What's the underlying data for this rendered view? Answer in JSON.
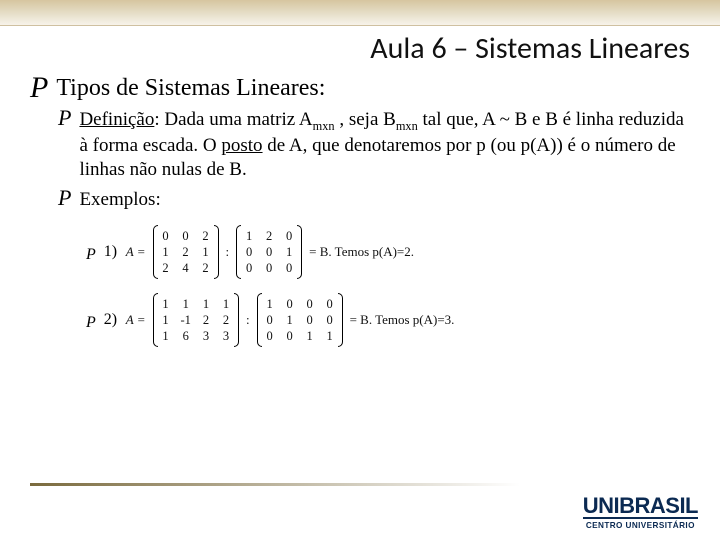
{
  "slide": {
    "title": "Aula 6 – Sistemas Lineares",
    "heading": "Tipos de Sistemas Lineares:",
    "definition": {
      "label": "Definição",
      "body_html": ": Dada uma matriz A<span class=\"sub\">mxn</span> ,  seja   B<span class=\"sub\">mxn</span>  tal que, A ~ B e B é linha reduzida à forma escada. O <span class=\"posto-u\">posto</span> de A, que denotaremos por p (ou p(A)) é o número de linhas não nulas de B."
    },
    "examples_label": "Exemplos:",
    "examples": [
      {
        "num": "1)",
        "lhs_name": "A =",
        "A": {
          "rows": 3,
          "cols": 3,
          "cells": [
            "0",
            "0",
            "2",
            "1",
            "2",
            "1",
            "2",
            "4",
            "2"
          ]
        },
        "sep": ":",
        "B": {
          "rows": 3,
          "cols": 3,
          "cells": [
            "1",
            "2",
            "0",
            "0",
            "0",
            "1",
            "0",
            "0",
            "0"
          ]
        },
        "tail": "= B. Temos p(A)=2."
      },
      {
        "num": "2)",
        "lhs_name": "A =",
        "A": {
          "rows": 3,
          "cols": 4,
          "cells": [
            "1",
            "1",
            "1",
            "1",
            "1",
            "-1",
            "2",
            "2",
            "1",
            "6",
            "3",
            "3"
          ]
        },
        "sep": ":",
        "B": {
          "rows": 3,
          "cols": 4,
          "cells": [
            "1",
            "0",
            "0",
            "0",
            "0",
            "1",
            "0",
            "0",
            "0",
            "0",
            "1",
            "1"
          ]
        },
        "tail": "= B. Temos p(A)=3."
      }
    ]
  },
  "style": {
    "background": "#ffffff",
    "band_gradient": [
      "#d6c5a0",
      "#e6dfc9",
      "#f7f3ea"
    ],
    "text_color": "#000000",
    "accent_line": "#7a6a3d",
    "logo_color": "#0b2a52",
    "title_fontsize": 30,
    "lvl1_fontsize": 24,
    "lvl2_fontsize": 19,
    "lvl3_fontsize": 16,
    "matrix_fontsize": 13,
    "bullet_glyph": "P"
  },
  "logo": {
    "main1": "UNI",
    "main2": "BRASIL",
    "sub": "CENTRO UNIVERSITÁRIO"
  }
}
